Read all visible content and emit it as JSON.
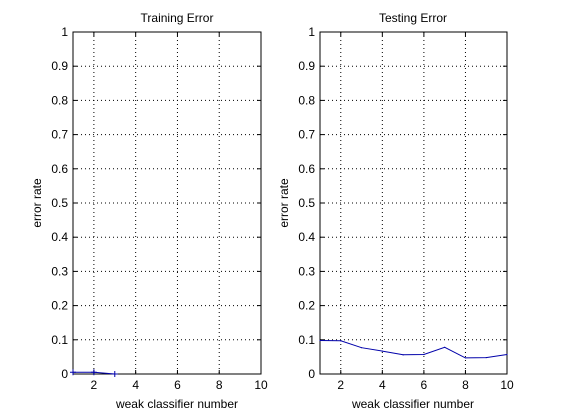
{
  "chart_data": [
    {
      "type": "line",
      "title": "Training Error",
      "xlabel": "weak classifier number",
      "ylabel": "error rate",
      "xlim": [
        1,
        10
      ],
      "ylim": [
        0,
        1
      ],
      "xticks": [
        "2",
        "4",
        "6",
        "8",
        "10"
      ],
      "yticks": [
        "0",
        "0.1",
        "0.2",
        "0.3",
        "0.4",
        "0.5",
        "0.6",
        "0.7",
        "0.8",
        "0.9",
        "1"
      ],
      "grid": true,
      "series": [
        {
          "color": "#0000aa",
          "marker": "+",
          "x": [
            1,
            2,
            3
          ],
          "y": [
            0.005,
            0.005,
            0.0
          ]
        }
      ]
    },
    {
      "type": "line",
      "title": "Testing Error",
      "xlabel": "weak classifier number",
      "ylabel": "error rate",
      "xlim": [
        1,
        10
      ],
      "ylim": [
        0,
        1
      ],
      "xticks": [
        "2",
        "4",
        "6",
        "8",
        "10"
      ],
      "yticks": [
        "0",
        "0.1",
        "0.2",
        "0.3",
        "0.4",
        "0.5",
        "0.6",
        "0.7",
        "0.8",
        "0.9",
        "1"
      ],
      "grid": true,
      "series": [
        {
          "color": "#0000aa",
          "x": [
            1,
            2,
            3,
            4,
            5,
            6,
            7,
            8,
            9,
            10
          ],
          "y": [
            0.098,
            0.097,
            0.077,
            0.067,
            0.056,
            0.057,
            0.078,
            0.047,
            0.048,
            0.057
          ]
        }
      ]
    }
  ]
}
